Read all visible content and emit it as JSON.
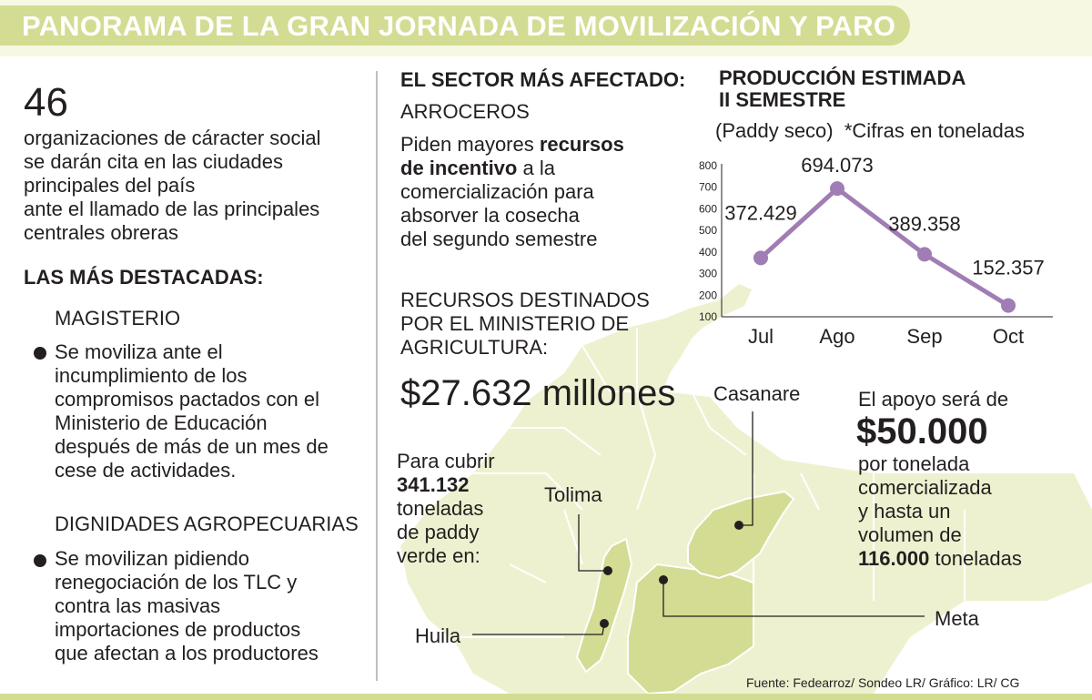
{
  "header": {
    "title": "PANORAMA DE LA GRAN JORNADA DE MOVILIZACIÓN Y PARO"
  },
  "left": {
    "big_number": "46",
    "intro_lines": [
      "organizaciones de cáracter social",
      "se darán cita en las ciudades",
      "principales del país",
      "ante el llamado de las principales",
      "centrales obreras"
    ],
    "destacadas_title": "LAS MÁS DESTACADAS:",
    "group1_title": "MAGISTERIO",
    "group1_lines": [
      "Se moviliza ante el",
      "incumplimiento de los",
      "compromisos pactados con el",
      "Ministerio de Educación",
      "después de más de un mes de",
      "cese de actividades."
    ],
    "group2_title": "DIGNIDADES AGROPECUARIAS",
    "group2_lines": [
      "Se movilizan pidiendo",
      "renegociación de los TLC y",
      "contra las masivas",
      "importaciones de productos",
      "que afectan a los productores"
    ]
  },
  "middle": {
    "sector_title": "EL SECTOR MÁS AFECTADO:",
    "sector_name": "ARROCEROS",
    "request_line1_a": "Piden mayores ",
    "request_line1_b": "recursos",
    "request_line2_a": "de incentivo",
    "request_line2_b": " a la",
    "request_lines": [
      "comercialización para",
      "absorver la cosecha",
      "del segundo semestre"
    ],
    "resources_lines": [
      "RECURSOS DESTINADOS",
      "POR EL MINISTERIO DE",
      "AGRICULTURA:"
    ],
    "amount": "$27.632 millones",
    "cover_line1": "Para cubrir",
    "cover_amount": "341.132",
    "cover_lines": [
      "toneladas",
      "de paddy",
      "verde en:"
    ]
  },
  "map": {
    "labels": {
      "casanare": "Casanare",
      "tolima": "Tolima",
      "huila": "Huila",
      "meta": "Meta"
    },
    "colors": {
      "land": "#eef1cf",
      "region": "#d3dc92",
      "border": "#ffffff"
    }
  },
  "support": {
    "line1": "El apoyo será de",
    "amount": "$50.000",
    "lines": [
      "por tonelada",
      "comercializada",
      "y hasta un",
      "volumen de"
    ],
    "volume_bold": "116.000",
    "volume_rest": " toneladas"
  },
  "chart_data": {
    "type": "line",
    "title": "PRODUCCIÓN ESTIMADA",
    "subtitle": "II SEMESTRE",
    "units_left": "(Paddy seco)",
    "units_right": "*Cifras en toneladas",
    "categories": [
      "Jul",
      "Ago",
      "Sep",
      "Oct"
    ],
    "values": [
      372429,
      694073,
      389358,
      152357
    ],
    "value_labels": [
      "372.429",
      "694.073",
      "389.358",
      "152.357"
    ],
    "y_ticks": [
      "800",
      "700",
      "600",
      "500",
      "400",
      "300",
      "200",
      "100"
    ],
    "ylim": [
      100000,
      800000
    ],
    "line_color": "#a07db4",
    "marker_color": "#a07db4"
  },
  "footer": {
    "source": "Fuente: Fedearroz/ Sondeo LR/ Gráfico: LR/ CG"
  }
}
